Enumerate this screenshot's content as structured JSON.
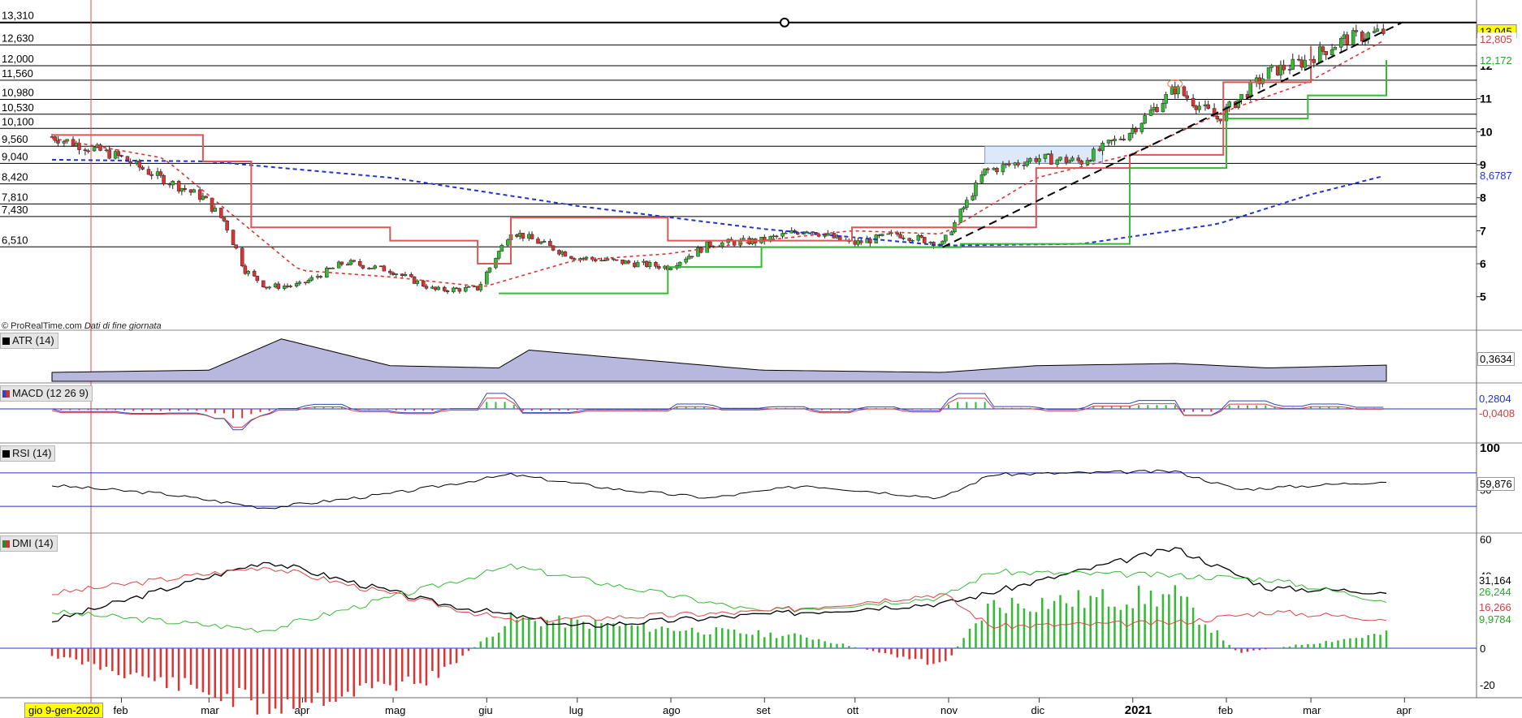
{
  "watermark": {
    "brand": "© ProRealTime.com",
    "note": "Dati di fine giornata"
  },
  "date_box": "gio 9-gen-2020",
  "price_levels_left": [
    "13,310",
    "12,630",
    "12,000",
    "11,560",
    "10,980",
    "10,530",
    "10,100",
    "9,560",
    "9,040",
    "8,420",
    "7,810",
    "7,430",
    "6,510"
  ],
  "price_axis_ticks": [
    "13",
    "12",
    "11",
    "10",
    "9",
    "8",
    "7",
    "6",
    "5"
  ],
  "price_current_labels": [
    {
      "text": "13,045",
      "color": "#000000",
      "bg": "#ffff00"
    },
    {
      "text": "12,805",
      "color": "#d04040",
      "bg": "#ffffff"
    },
    {
      "text": "12,172",
      "color": "#22aa22",
      "bg": "#ffffff"
    },
    {
      "text": "8,6787",
      "color": "#2233cc",
      "bg": "#ffffff"
    }
  ],
  "x_axis_labels": [
    "feb",
    "mar",
    "apr",
    "mag",
    "giu",
    "lug",
    "ago",
    "set",
    "ott",
    "nov",
    "dic",
    "2021",
    "feb",
    "mar",
    "apr"
  ],
  "panels": {
    "atr": {
      "title": "ATR (14)",
      "value": "0,3634"
    },
    "macd": {
      "title": "MACD (12 26 9)",
      "value_macd": "0,2804",
      "value_hist": "-0,0408"
    },
    "rsi": {
      "title": "RSI (14)",
      "value": "59,876",
      "ticks": [
        "100",
        "50"
      ]
    },
    "dmi": {
      "title": "DMI (14)",
      "values": [
        {
          "text": "31,164",
          "color": "#000000"
        },
        {
          "text": "26,244",
          "color": "#22aa22"
        },
        {
          "text": "16,266",
          "color": "#d04040"
        },
        {
          "text": "9,9784",
          "color": "#22aa22"
        }
      ],
      "ticks": [
        "60",
        "40",
        "0",
        "-20"
      ]
    }
  },
  "colors": {
    "up": "#33bb33",
    "down": "#dd3333",
    "ma_long": "#2233cc",
    "ma_short": "#dd3333",
    "support": "#33bb33",
    "resistance": "#dd5555",
    "trend": "#000000"
  },
  "chart_data": {
    "type": "line",
    "title": "",
    "x_start": "2020-01-02",
    "x_end": "2021-03-26",
    "y_range": [
      4.6,
      13.45
    ],
    "horizontal_levels": [
      13.31,
      12.63,
      12.0,
      11.56,
      10.98,
      10.53,
      10.1,
      9.56,
      9.04,
      8.42,
      7.81,
      7.43,
      6.51
    ],
    "series": [
      {
        "name": "Close",
        "x": [
          "2020-01-09",
          "2020-01-31",
          "2020-02-14",
          "2020-02-28",
          "2020-03-06",
          "2020-03-13",
          "2020-03-20",
          "2020-03-31",
          "2020-04-15",
          "2020-04-30",
          "2020-05-15",
          "2020-05-29",
          "2020-06-09",
          "2020-06-30",
          "2020-07-31",
          "2020-08-14",
          "2020-08-31",
          "2020-09-15",
          "2020-09-30",
          "2020-10-15",
          "2020-10-30",
          "2020-11-13",
          "2020-11-30",
          "2020-12-15",
          "2020-12-31",
          "2021-01-15",
          "2021-01-29",
          "2021-02-15",
          "2021-02-26",
          "2021-03-12",
          "2021-03-26"
        ],
        "values": [
          9.85,
          9.25,
          8.6,
          8.0,
          7.3,
          5.8,
          5.3,
          5.35,
          6.05,
          5.8,
          5.2,
          5.25,
          7.0,
          6.2,
          5.9,
          6.6,
          6.7,
          7.05,
          6.6,
          6.9,
          6.6,
          8.8,
          9.2,
          9.1,
          10.0,
          11.3,
          10.4,
          11.8,
          12.1,
          12.8,
          13.04
        ]
      },
      {
        "name": "MA long",
        "x": [
          "2020-01-09",
          "2020-03-01",
          "2020-05-01",
          "2020-07-01",
          "2020-09-01",
          "2020-10-30",
          "2020-12-15",
          "2021-01-29",
          "2021-03-01",
          "2021-03-26"
        ],
        "values": [
          9.15,
          9.1,
          8.6,
          7.75,
          7.05,
          6.55,
          6.6,
          7.2,
          8.1,
          8.6787
        ]
      },
      {
        "name": "MA short",
        "x": [
          "2020-01-09",
          "2020-02-15",
          "2020-03-31",
          "2020-04-30",
          "2020-05-31",
          "2020-06-30",
          "2020-07-31",
          "2020-08-31",
          "2020-09-30",
          "2020-10-30",
          "2020-11-30",
          "2020-12-31",
          "2021-01-31",
          "2021-02-28",
          "2021-03-26"
        ],
        "values": [
          9.8,
          9.2,
          5.8,
          5.6,
          5.3,
          6.1,
          6.3,
          6.7,
          7.0,
          6.9,
          8.6,
          9.3,
          10.6,
          11.5,
          12.805
        ]
      },
      {
        "name": "Support",
        "x": [
          "2020-06-05",
          "2020-07-31",
          "2020-08-31",
          "2020-09-30",
          "2020-11-05",
          "2020-12-31",
          "2021-02-01",
          "2021-02-28",
          "2021-03-26"
        ],
        "values": [
          5.1,
          5.9,
          6.5,
          6.5,
          6.6,
          8.9,
          10.4,
          11.1,
          12.172
        ]
      },
      {
        "name": "Resistance",
        "x": [
          "2020-01-09",
          "2020-02-28",
          "2020-03-15",
          "2020-04-30",
          "2020-05-29",
          "2020-06-09",
          "2020-07-31",
          "2020-09-30",
          "2020-10-29",
          "2020-11-30",
          "2020-12-31",
          "2021-01-31",
          "2021-03-01"
        ],
        "values": [
          9.9,
          9.1,
          7.1,
          6.7,
          6.0,
          7.4,
          6.7,
          7.1,
          7.1,
          8.9,
          9.3,
          11.5,
          12.6
        ]
      }
    ],
    "trendline": {
      "x": [
        "2020-10-30",
        "2021-03-31"
      ],
      "values": [
        6.5,
        13.3
      ]
    },
    "atr": {
      "x": [
        "2020-01-09",
        "2020-03-01",
        "2020-03-25",
        "2020-04-30",
        "2020-06-05",
        "2020-06-15",
        "2020-08-31",
        "2020-10-30",
        "2020-11-30",
        "2021-01-15",
        "2021-02-15",
        "2021-03-26"
      ],
      "values": [
        0.2,
        0.25,
        0.95,
        0.35,
        0.3,
        0.7,
        0.25,
        0.2,
        0.35,
        0.4,
        0.3,
        0.3634
      ]
    },
    "rsi": {
      "ylim": [
        0,
        100
      ],
      "levels": [
        70,
        30
      ],
      "x": [
        "2020-01-09",
        "2020-02-15",
        "2020-03-20",
        "2020-04-30",
        "2020-06-09",
        "2020-07-15",
        "2020-08-14",
        "2020-09-15",
        "2020-10-30",
        "2020-11-15",
        "2021-01-15",
        "2021-02-05",
        "2021-03-26"
      ],
      "values": [
        55,
        45,
        28,
        45,
        68,
        50,
        40,
        55,
        40,
        68,
        72,
        50,
        59.876
      ]
    },
    "dmi": {
      "ylim": [
        -25,
        62
      ],
      "adx": {
        "x": [
          "2020-01-09",
          "2020-03-20",
          "2020-05-15",
          "2020-06-30",
          "2020-09-15",
          "2020-11-01",
          "2021-01-15",
          "2021-02-15",
          "2021-03-26"
        ],
        "values": [
          15,
          48,
          25,
          12,
          20,
          25,
          55,
          33,
          31.164
        ]
      },
      "di_plus": {
        "x": [
          "2020-01-09",
          "2020-03-20",
          "2020-06-09",
          "2020-08-31",
          "2020-10-30",
          "2020-11-15",
          "2021-01-15",
          "2021-02-15",
          "2021-03-26"
        ],
        "values": [
          20,
          10,
          45,
          20,
          28,
          42,
          40,
          38,
          26.244
        ]
      },
      "di_minus": {
        "x": [
          "2020-01-09",
          "2020-03-20",
          "2020-06-09",
          "2020-08-31",
          "2020-10-30",
          "2020-11-15",
          "2021-01-15",
          "2021-02-15",
          "2021-03-26"
        ],
        "values": [
          30,
          45,
          15,
          20,
          30,
          12,
          14,
          20,
          16.266
        ]
      },
      "hist": {
        "x": [
          "2020-01-09",
          "2020-03-20",
          "2020-05-15",
          "2020-06-09",
          "2020-09-15",
          "2020-10-30",
          "2020-11-15",
          "2021-01-15",
          "2021-02-05",
          "2021-03-26"
        ],
        "values": [
          -5,
          -40,
          -20,
          20,
          8,
          -12,
          30,
          36,
          -3,
          9.9784
        ]
      }
    }
  }
}
